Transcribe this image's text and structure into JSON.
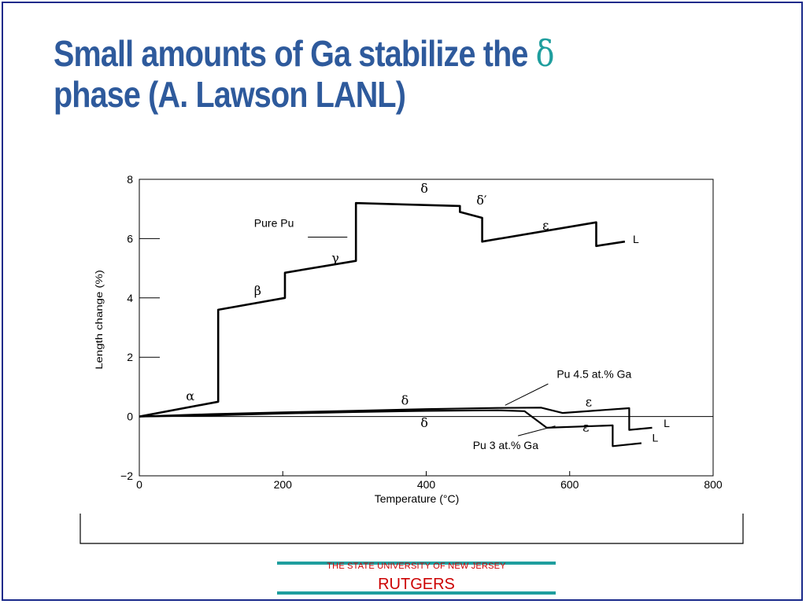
{
  "slide": {
    "title_line1": "Small amounts of Ga stabilize the ",
    "title_greek": "δ",
    "title_line2": "phase (A. Lawson LANL)"
  },
  "footer": {
    "university": "THE STATE UNIVERSITY OF NEW JERSEY",
    "name": "RUTGERS"
  },
  "colors": {
    "title": "#2e5a9c",
    "greek_accent": "#1f9e9e",
    "footer_text": "#cc0000",
    "footer_rule": "#1f9e9e",
    "frame": "#1a2a8a"
  },
  "chart_data": {
    "type": "line",
    "title": "",
    "xlabel": "Temperature (°C)",
    "ylabel": "Length change (%)",
    "xlim": [
      0,
      800
    ],
    "ylim": [
      -2,
      8
    ],
    "x_ticks": [
      0,
      200,
      400,
      600,
      800
    ],
    "y_ticks": [
      -2,
      0,
      2,
      4,
      6,
      8
    ],
    "grid": false,
    "series": [
      {
        "name": "Pure Pu",
        "points": [
          [
            0,
            0
          ],
          [
            110,
            0.5
          ],
          [
            110,
            3.6
          ],
          [
            203,
            4.0
          ],
          [
            203,
            4.85
          ],
          [
            302,
            5.25
          ],
          [
            302,
            7.2
          ],
          [
            447,
            7.1
          ],
          [
            447,
            6.9
          ],
          [
            478,
            6.7
          ],
          [
            478,
            5.9
          ],
          [
            637,
            6.55
          ],
          [
            637,
            5.75
          ],
          [
            677,
            5.9
          ]
        ]
      },
      {
        "name": "Pu 4.5 at.% Ga",
        "points": [
          [
            0,
            0
          ],
          [
            100,
            0.08
          ],
          [
            200,
            0.14
          ],
          [
            300,
            0.19
          ],
          [
            400,
            0.25
          ],
          [
            500,
            0.29
          ],
          [
            560,
            0.3
          ],
          [
            590,
            0.12
          ],
          [
            683,
            0.28
          ],
          [
            683,
            -0.45
          ],
          [
            715,
            -0.38
          ]
        ]
      },
      {
        "name": "Pu 3 at.% Ga",
        "points": [
          [
            0,
            0
          ],
          [
            100,
            0.04
          ],
          [
            200,
            0.1
          ],
          [
            300,
            0.15
          ],
          [
            400,
            0.19
          ],
          [
            500,
            0.21
          ],
          [
            537,
            0.18
          ],
          [
            568,
            -0.38
          ],
          [
            660,
            -0.3
          ],
          [
            660,
            -1.0
          ],
          [
            700,
            -0.9
          ]
        ]
      }
    ],
    "annotations": [
      {
        "text": "Pure Pu",
        "x": 160,
        "y": 6.4
      },
      {
        "text": "Pu 4.5 at.% Ga",
        "x": 582,
        "y": 1.3
      },
      {
        "text": "Pu 3 at.% Ga",
        "x": 465,
        "y": -1.1
      },
      {
        "text": "α",
        "x": 65,
        "y": 0.55
      },
      {
        "text": "β",
        "x": 160,
        "y": 4.1
      },
      {
        "text": "γ",
        "x": 268,
        "y": 5.2
      },
      {
        "text": "δ",
        "x": 392,
        "y": 7.55
      },
      {
        "text": "δ′",
        "x": 470,
        "y": 7.15
      },
      {
        "text": "ε",
        "x": 562,
        "y": 6.3
      },
      {
        "text": "L",
        "x": 688,
        "y": 5.85
      },
      {
        "text": "δ",
        "x": 365,
        "y": 0.4
      },
      {
        "text": "ε",
        "x": 622,
        "y": 0.35
      },
      {
        "text": "L",
        "x": 731,
        "y": -0.35
      },
      {
        "text": "δ",
        "x": 392,
        "y": -0.35
      },
      {
        "text": "ε",
        "x": 618,
        "y": -0.5
      },
      {
        "text": "L",
        "x": 715,
        "y": -0.85
      }
    ]
  }
}
